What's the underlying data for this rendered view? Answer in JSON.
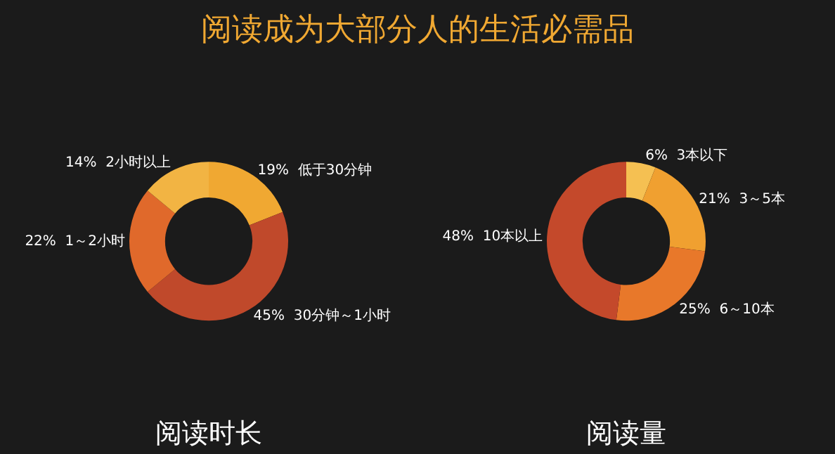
{
  "chart_data": [
    {
      "type": "donut",
      "title": "阅读时长",
      "annotations": [
        "阅读成为大部分人的生活必需品"
      ],
      "categories": [
        "低于30分钟",
        "30分钟～1小时",
        "1～2小时",
        "2小时以上"
      ],
      "values": [
        19,
        45,
        22,
        14
      ],
      "value_labels": [
        "19%",
        "45%",
        "22%",
        "14%"
      ],
      "colors": [
        "#f0a832",
        "#c0492b",
        "#e0692b",
        "#f2b443"
      ],
      "legend": false
    },
    {
      "type": "donut",
      "title": "阅读量",
      "categories": [
        "3本以下",
        "3～5本",
        "6～10本",
        "10本以上"
      ],
      "values": [
        6,
        21,
        25,
        48
      ],
      "value_labels": [
        "6%",
        "21%",
        "25%",
        "48%"
      ],
      "colors": [
        "#f5c052",
        "#f0a030",
        "#e8782a",
        "#c4492b"
      ],
      "legend": false
    }
  ]
}
